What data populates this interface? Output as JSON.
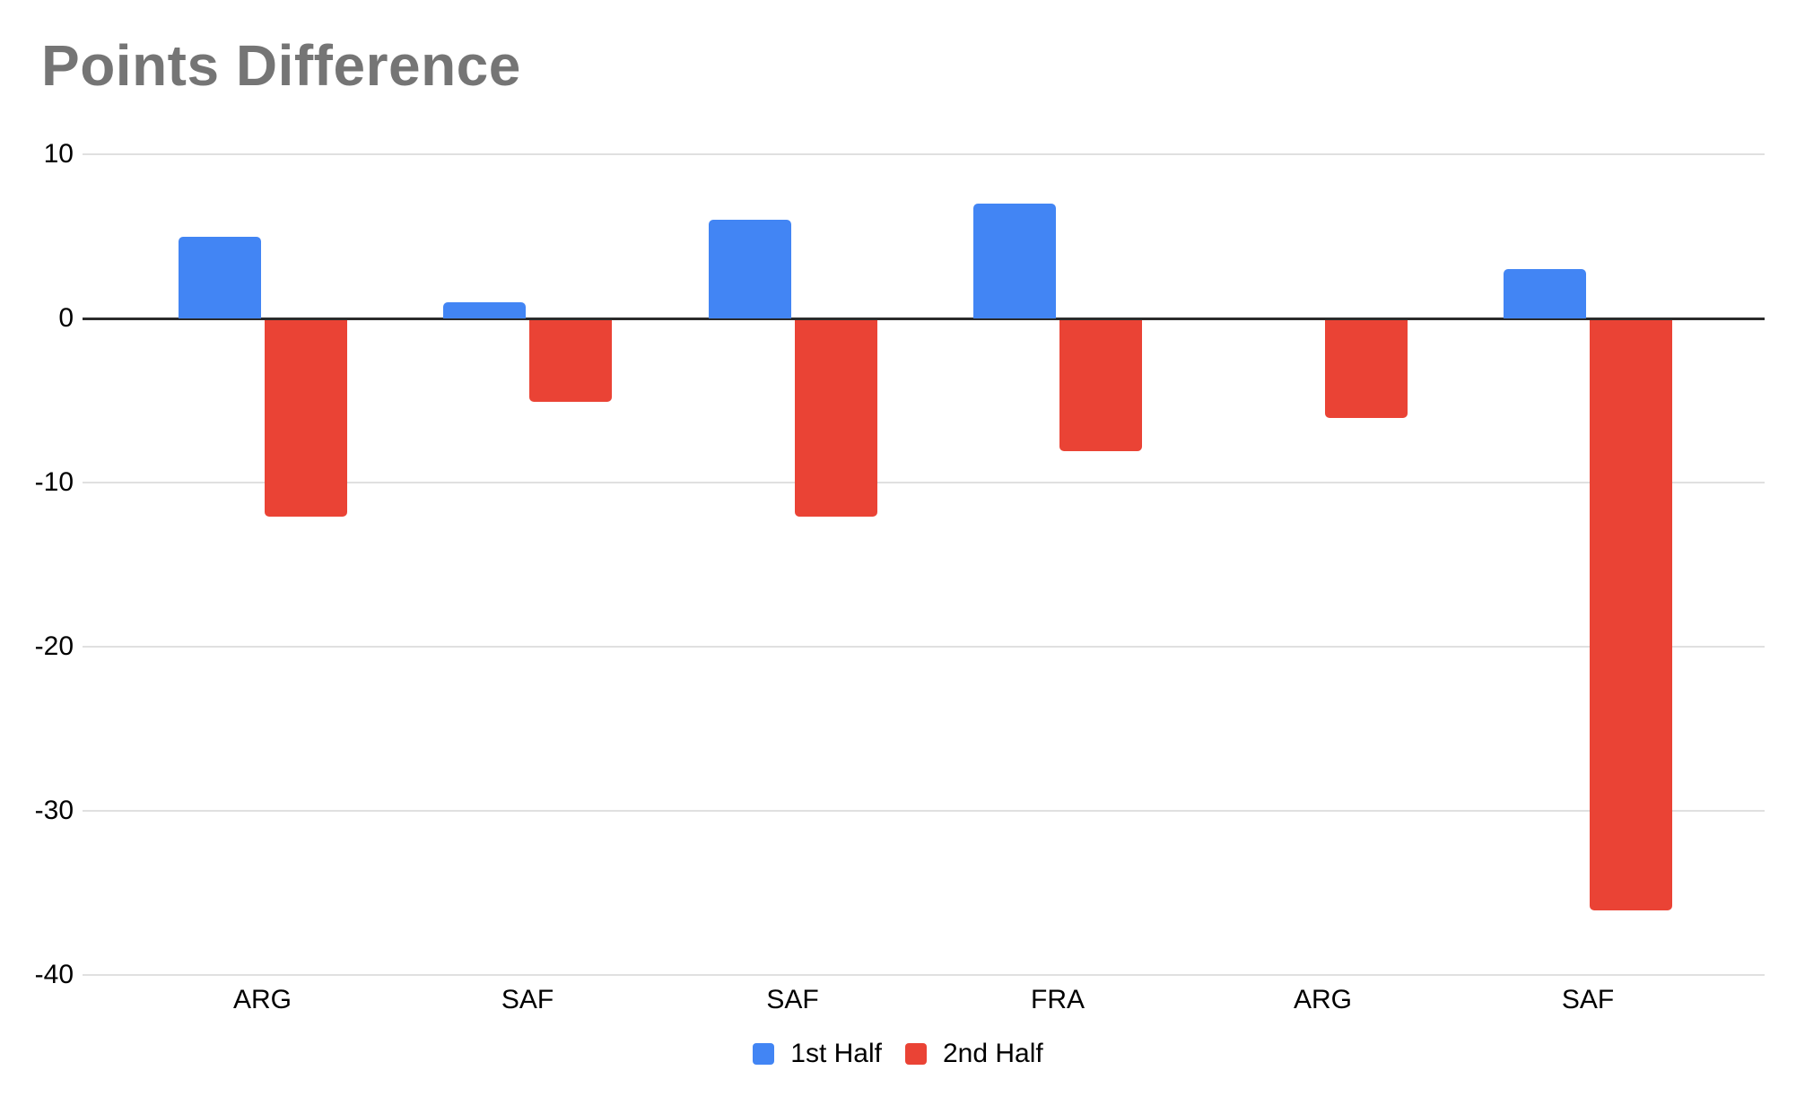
{
  "chart": {
    "title": "Points Difference"
  },
  "chart_data": {
    "type": "bar",
    "title": "Points Difference",
    "categories": [
      "ARG",
      "SAF",
      "SAF",
      "FRA",
      "ARG",
      "SAF"
    ],
    "series": [
      {
        "name": "1st Half",
        "color": "#4285F4",
        "values": [
          5,
          1,
          6,
          7,
          0,
          3
        ]
      },
      {
        "name": "2nd Half",
        "color": "#EA4335",
        "values": [
          -12,
          -5,
          -12,
          -8,
          -6,
          -36
        ]
      }
    ],
    "xlabel": "",
    "ylabel": "",
    "ylim": [
      -40,
      10
    ],
    "yticks": [
      10,
      0,
      -10,
      -20,
      -30,
      -40
    ],
    "grid": true,
    "legend_position": "bottom",
    "colors": {
      "title": "#757575",
      "gridline": "#E0E0E0",
      "zero_line": "#2B2B2B",
      "axis_text": "#000000",
      "background": "#FFFFFF"
    }
  }
}
